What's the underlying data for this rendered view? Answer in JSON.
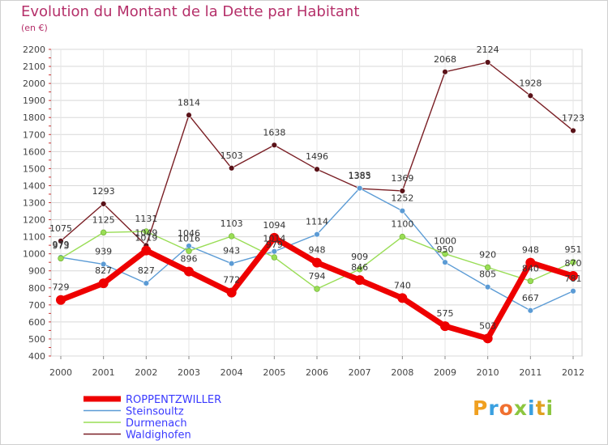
{
  "title": "Evolution du Montant de la Dette par Habitant",
  "subtitle": "(en €)",
  "logo": {
    "letters": [
      "P",
      "r",
      "o",
      "x",
      "i",
      "t",
      "i"
    ],
    "colors": [
      "#f0a020",
      "#3aa0e0",
      "#f07030",
      "#8cc63f",
      "#3aa0e0",
      "#e0a020",
      "#8cc63f"
    ]
  },
  "chart_data": {
    "type": "line",
    "title": "Evolution du Montant de la Dette par Habitant",
    "ylabel": "(en €)",
    "xlabel": "",
    "categories": [
      "2000",
      "2001",
      "2002",
      "2003",
      "2004",
      "2005",
      "2006",
      "2007",
      "2008",
      "2009",
      "2010",
      "2011",
      "2012"
    ],
    "ylim": [
      400,
      2200
    ],
    "yticks": [
      400,
      500,
      600,
      700,
      800,
      900,
      1000,
      1100,
      1200,
      1300,
      1400,
      1500,
      1600,
      1700,
      1800,
      1900,
      2000,
      2100,
      2200
    ],
    "grid": true,
    "legend_position": "bottom-left",
    "series": [
      {
        "name": "ROPPENTZWILLER",
        "color": "#ee0000",
        "values": [
          729,
          827,
          1019,
          896,
          772,
          1094,
          948,
          846,
          740,
          575,
          503,
          948,
          870
        ]
      },
      {
        "name": "Steinsoultz",
        "color": "#5b9bd5",
        "values": [
          979,
          939,
          827,
          1046,
          943,
          1014,
          1114,
          1385,
          1252,
          950,
          805,
          667,
          781
        ]
      },
      {
        "name": "Durmenach",
        "color": "#99dd55",
        "values": [
          973,
          1125,
          1131,
          1016,
          1103,
          979,
          794,
          909,
          1100,
          1000,
          920,
          840,
          951
        ]
      },
      {
        "name": "Waldighofen",
        "color": "#7a1f25",
        "values": [
          1075,
          1293,
          1049,
          1814,
          1503,
          1638,
          1496,
          1383,
          1369,
          2068,
          2124,
          1928,
          1723
        ]
      }
    ]
  }
}
